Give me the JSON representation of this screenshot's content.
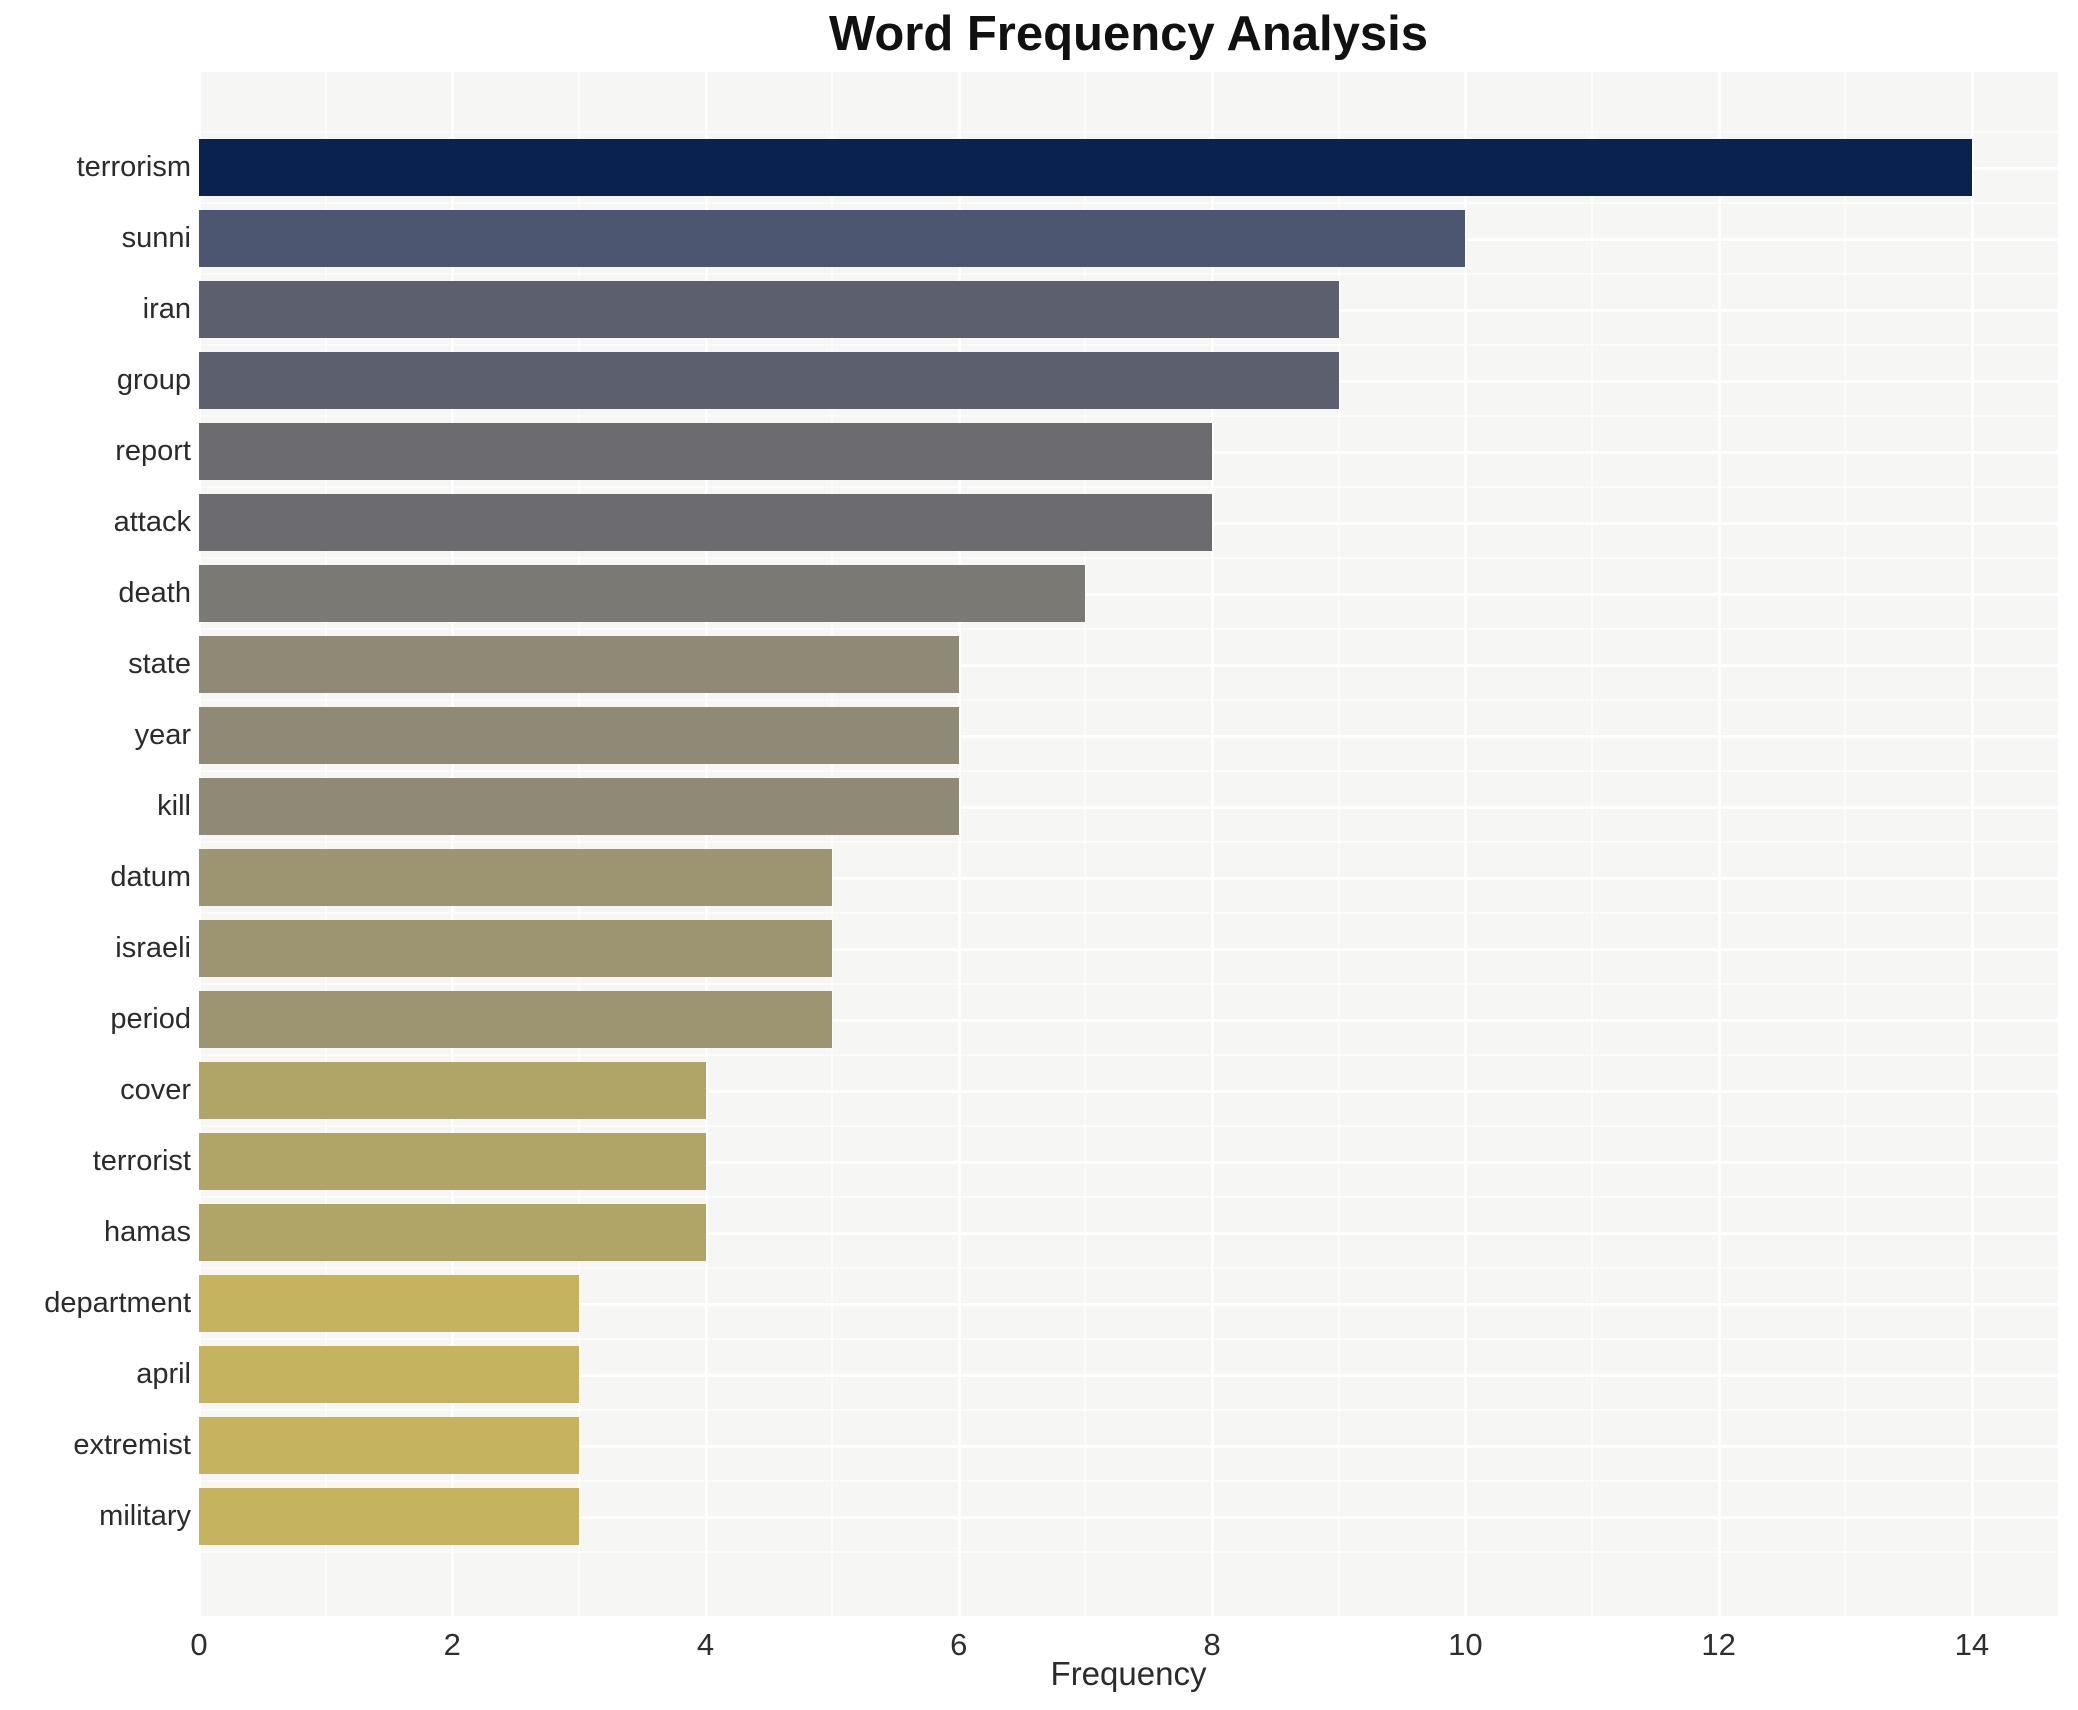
{
  "chart_data": {
    "type": "bar",
    "orientation": "horizontal",
    "title": "Word Frequency Analysis",
    "xlabel": "Frequency",
    "ylabel": "",
    "categories": [
      "terrorism",
      "sunni",
      "iran",
      "group",
      "report",
      "attack",
      "death",
      "state",
      "year",
      "kill",
      "datum",
      "israeli",
      "period",
      "cover",
      "terrorist",
      "hamas",
      "department",
      "april",
      "extremist",
      "military"
    ],
    "values": [
      14,
      10,
      9,
      9,
      8,
      8,
      7,
      6,
      6,
      6,
      5,
      5,
      5,
      4,
      4,
      4,
      3,
      3,
      3,
      3
    ],
    "bar_colors": [
      "#092250",
      "#4c5670",
      "#5c5f6d",
      "#5c5f6d",
      "#6b6b70",
      "#6b6b70",
      "#7b7974",
      "#8f8976",
      "#8f8976",
      "#8f8976",
      "#9d9472",
      "#9d9472",
      "#9d9472",
      "#b0a467",
      "#b0a467",
      "#b0a467",
      "#c5b35f",
      "#c5b35f",
      "#c5b35f",
      "#c5b35f"
    ],
    "xlim": [
      0,
      14.68
    ],
    "x_ticks": [
      0,
      2,
      4,
      6,
      8,
      10,
      12,
      14
    ],
    "x_minor_ticks": [
      1,
      3,
      5,
      7,
      9,
      11,
      13
    ],
    "grid": "on",
    "legend": "none",
    "colors": {
      "page_bg": "#ffffff",
      "plot_bg": "#f6f6f5",
      "grid_major": "#ffffff",
      "grid_minor": "#ffffff",
      "tick_text": "#2b2b2b",
      "title_text": "#111111"
    }
  }
}
